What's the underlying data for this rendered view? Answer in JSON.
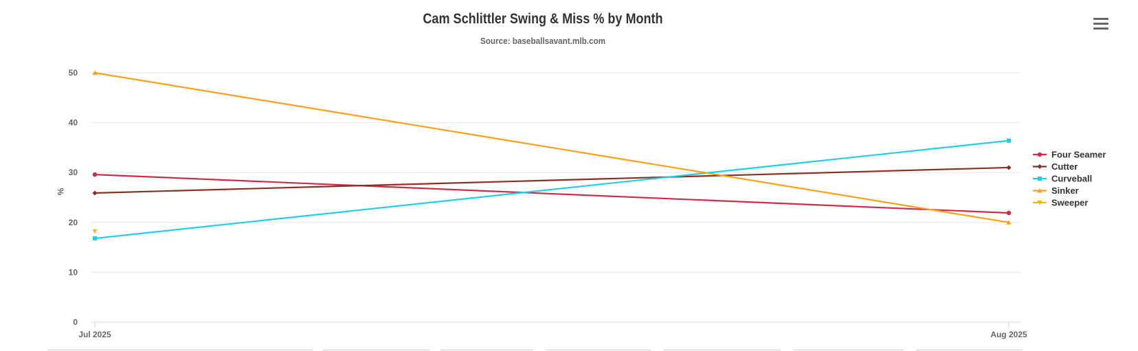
{
  "header": {
    "title": "Cam Schlittler Swing & Miss % by Month",
    "subtitle": "Source: baseballsavant.mlb.com",
    "menu_icon": "hamburger-menu-icon"
  },
  "chart_data": {
    "type": "line",
    "title": "Cam Schlittler Swing & Miss % by Month",
    "subtitle": "Source: baseballsavant.mlb.com",
    "xlabel": "",
    "ylabel": "%",
    "categories": [
      "Jul 2025",
      "Aug 2025"
    ],
    "ylim": [
      0,
      50
    ],
    "yticks": [
      0,
      10,
      20,
      30,
      40,
      50
    ],
    "grid": true,
    "legend_position": "right",
    "series": [
      {
        "name": "Four Seamer",
        "color": "#d0294a",
        "marker": "circle",
        "values": [
          29.6,
          21.9
        ]
      },
      {
        "name": "Cutter",
        "color": "#8b2e24",
        "marker": "diamond",
        "values": [
          25.9,
          31.0
        ]
      },
      {
        "name": "Curveball",
        "color": "#1fcfe6",
        "marker": "square",
        "values": [
          16.8,
          36.4
        ]
      },
      {
        "name": "Sinker",
        "color": "#ff9f17",
        "marker": "triangle",
        "values": [
          50.0,
          20.0
        ]
      },
      {
        "name": "Sweeper",
        "color": "#ffb319",
        "marker": "triangle-down",
        "values": [
          18.2,
          null
        ]
      }
    ]
  }
}
